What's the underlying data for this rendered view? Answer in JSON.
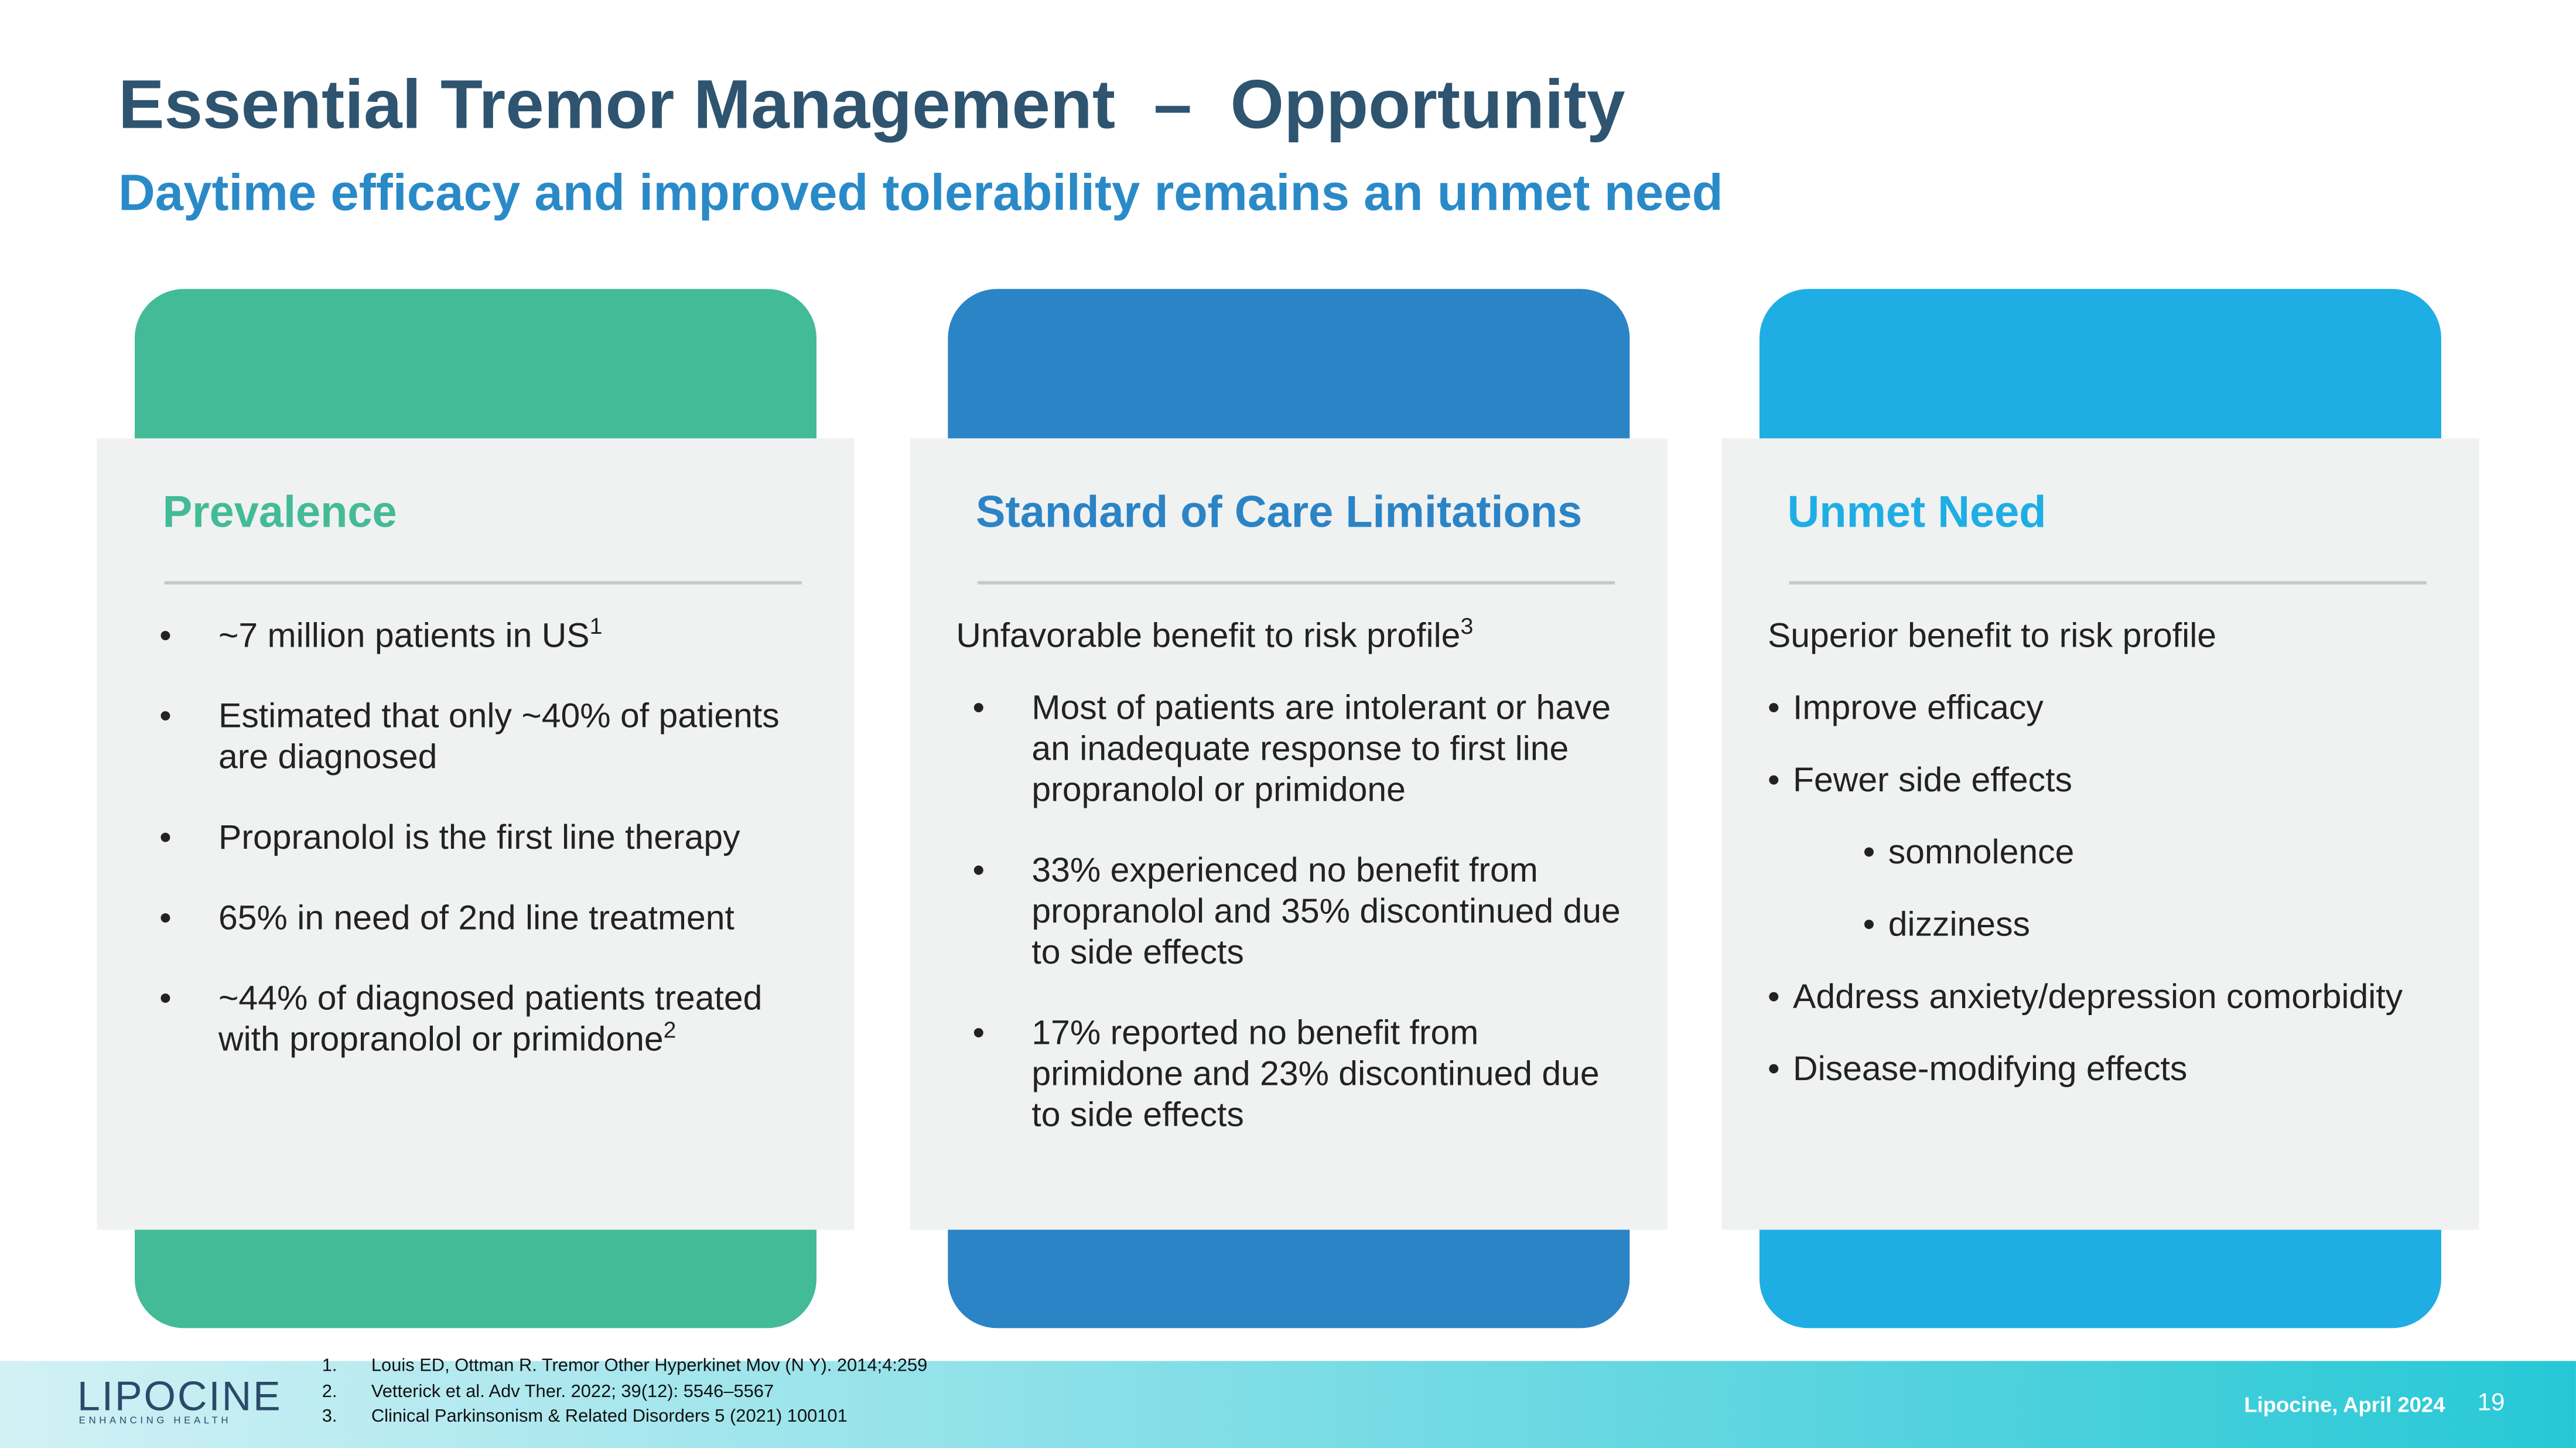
{
  "header": {
    "title": "Essential Tremor Management  –  Opportunity",
    "subtitle": "Daytime efficacy and improved tolerability remains an unmet need"
  },
  "cards": [
    {
      "title": "Prevalence",
      "items": [
        {
          "text": "~7 million patients in US",
          "sup": "1"
        },
        {
          "text": "Estimated that only ~40% of patients are diagnosed"
        },
        {
          "text": "Propranolol is the first line therapy"
        },
        {
          "text": "65% in need of 2nd line treatment"
        },
        {
          "text": "~44% of diagnosed patients treated with propranolol or primidone",
          "sup": "2"
        }
      ]
    },
    {
      "title": "Standard of Care Limitations",
      "intro": "Unfavorable benefit to risk profile",
      "intro_sup": "3",
      "items": [
        {
          "text": "Most of patients are intolerant or have an inadequate response to first line propranolol or primidone"
        },
        {
          "text": "33% experienced no benefit from propranolol and 35% discontinued due to side effects"
        },
        {
          "text": "17% reported no benefit from primidone and 23% discontinued due to side effects"
        }
      ]
    },
    {
      "title": "Unmet Need",
      "intro": "Superior benefit to risk profile",
      "items": [
        {
          "text": "Improve efficacy"
        },
        {
          "text": "Fewer side effects",
          "subitems": [
            "somnolence",
            "dizziness"
          ]
        },
        {
          "text": "Address anxiety/depression comorbidity"
        },
        {
          "text": "Disease-modifying effects"
        }
      ]
    }
  ],
  "footnotes": [
    {
      "number": "1.",
      "text": "Louis ED, Ottman R. Tremor Other Hyperkinet Mov (N Y). 2014;4:259"
    },
    {
      "number": "2.",
      "text": "Vetterick et al. Adv Ther. 2022; 39(12): 5546–5567"
    },
    {
      "number": "3.",
      "text": "Clinical Parkinsonism & Related Disorders 5 (2021) 100101"
    }
  ],
  "footer": {
    "logo": "LIPOCINE",
    "tagline": "ENHANCING HEALTH",
    "source": "Lipocine, April 2024",
    "page": "19"
  }
}
